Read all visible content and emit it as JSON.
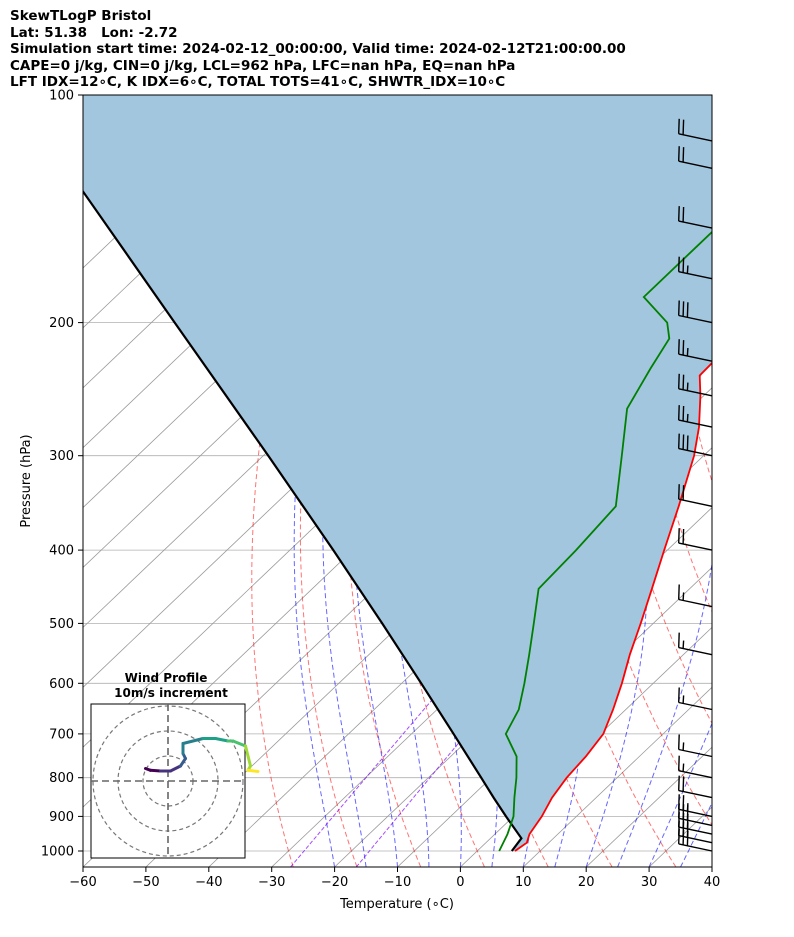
{
  "header": {
    "lines": [
      "SkewTLogP Bristol",
      "Lat: 51.38   Lon: -2.72",
      "Simulation start time: 2024-02-12_00:00:00, Valid time: 2024-02-12T21:00:00.00",
      "CAPE=0 j/kg, CIN=0 j/kg, LCL=962 hPa, LFC=nan hPa, EQ=nan hPa",
      "LFT IDX=12∘C, K IDX=6∘C, TOTAL TOTS=41∘C, SHWTR_IDX=10∘C"
    ]
  },
  "chart_data": {
    "type": "line",
    "xlabel": "Temperature (∘C)",
    "ylabel": "Pressure (hPa)",
    "xlim": [
      -60,
      40
    ],
    "ylim": [
      1050,
      100
    ],
    "y_scale": "log",
    "grid": true,
    "x_ticks": [
      -60,
      -50,
      -40,
      -30,
      -20,
      -10,
      0,
      10,
      20,
      30,
      40
    ],
    "y_ticks": [
      100,
      200,
      300,
      400,
      500,
      600,
      700,
      800,
      900,
      1000
    ],
    "colors": {
      "temperature": "#ff0000",
      "dewpoint": "#008000",
      "parcel": "#000000",
      "shade": "#a2c6de",
      "dry_adiabat": "#ff0000",
      "moist_adiabat": "#0000ff",
      "mixing_ratio": "#8000ff",
      "isotherm": "#888888"
    },
    "series": [
      {
        "key": "temperature",
        "points": [
          [
            1000,
            6
          ],
          [
            975,
            6.5
          ],
          [
            950,
            5.5
          ],
          [
            900,
            4.5
          ],
          [
            850,
            3
          ],
          [
            800,
            2
          ],
          [
            750,
            1.5
          ],
          [
            700,
            0.5
          ],
          [
            650,
            -2
          ],
          [
            600,
            -5
          ],
          [
            550,
            -8.5
          ],
          [
            500,
            -12
          ],
          [
            450,
            -16
          ],
          [
            400,
            -20.5
          ],
          [
            350,
            -25.5
          ],
          [
            300,
            -31.5
          ],
          [
            275,
            -35.5
          ],
          [
            250,
            -40.5
          ],
          [
            235,
            -44
          ],
          [
            200,
            -44.5
          ],
          [
            175,
            -48
          ],
          [
            150,
            -50
          ],
          [
            130,
            -53
          ],
          [
            115,
            -56
          ],
          [
            100,
            -59.5
          ]
        ]
      },
      {
        "key": "dewpoint",
        "points": [
          [
            1000,
            3.5
          ],
          [
            950,
            2
          ],
          [
            900,
            0
          ],
          [
            850,
            -3
          ],
          [
            800,
            -6
          ],
          [
            750,
            -9.5
          ],
          [
            700,
            -15
          ],
          [
            650,
            -17
          ],
          [
            600,
            -20.5
          ],
          [
            550,
            -24.5
          ],
          [
            500,
            -29
          ],
          [
            450,
            -34
          ],
          [
            400,
            -34.5
          ],
          [
            350,
            -35.5
          ],
          [
            300,
            -43
          ],
          [
            260,
            -50
          ],
          [
            230,
            -53
          ],
          [
            210,
            -55
          ],
          [
            200,
            -58
          ],
          [
            185,
            -66
          ],
          [
            160,
            -66
          ],
          [
            140,
            -66
          ],
          [
            120,
            -66.5
          ],
          [
            100,
            -67
          ]
        ]
      },
      {
        "key": "parcel",
        "points": [
          [
            1000,
            5.5
          ],
          [
            962,
            4.9
          ],
          [
            900,
            -1.2
          ],
          [
            850,
            -6.3
          ],
          [
            800,
            -11.6
          ],
          [
            700,
            -23.3
          ],
          [
            600,
            -36.9
          ],
          [
            500,
            -53.1
          ],
          [
            400,
            -73.1
          ],
          [
            300,
            -99.2
          ],
          [
            200,
            -136.3
          ],
          [
            100,
            -199.6
          ]
        ]
      }
    ],
    "wind_barbs": [
      {
        "p": 1000,
        "barbs": 3
      },
      {
        "p": 975,
        "barbs": 3
      },
      {
        "p": 950,
        "barbs": 3
      },
      {
        "p": 925,
        "barbs": 3
      },
      {
        "p": 900,
        "barbs": 2.5
      },
      {
        "p": 850,
        "barbs": 2
      },
      {
        "p": 800,
        "barbs": 1.5
      },
      {
        "p": 750,
        "barbs": 1.5
      },
      {
        "p": 650,
        "barbs": 1.5
      },
      {
        "p": 550,
        "barbs": 1.5
      },
      {
        "p": 475,
        "barbs": 1.5
      },
      {
        "p": 400,
        "barbs": 2
      },
      {
        "p": 350,
        "barbs": 2
      },
      {
        "p": 300,
        "barbs": 3
      },
      {
        "p": 275,
        "barbs": 2.5
      },
      {
        "p": 250,
        "barbs": 2.5
      },
      {
        "p": 225,
        "barbs": 2.5
      },
      {
        "p": 200,
        "barbs": 3
      },
      {
        "p": 175,
        "barbs": 2.5
      },
      {
        "p": 150,
        "barbs": 2
      },
      {
        "p": 125,
        "barbs": 2
      },
      {
        "p": 115,
        "barbs": 2
      }
    ],
    "hodograph": {
      "title_lines": [
        "Wind Profile",
        "10m/s increment"
      ],
      "rings_ms": [
        10,
        20,
        30
      ],
      "trace": [
        [
          -9,
          -5
        ],
        [
          -7,
          -4.3
        ],
        [
          -3,
          -4
        ],
        [
          1,
          -4
        ],
        [
          5,
          -6
        ],
        [
          7,
          -9
        ],
        [
          6,
          -11
        ],
        [
          6,
          -15
        ],
        [
          14,
          -17
        ],
        [
          19,
          -17
        ],
        [
          24,
          -16
        ],
        [
          26,
          -16
        ],
        [
          31,
          -14
        ],
        [
          33,
          -6
        ],
        [
          32,
          -4.3
        ],
        [
          36,
          -3.8
        ]
      ]
    }
  }
}
